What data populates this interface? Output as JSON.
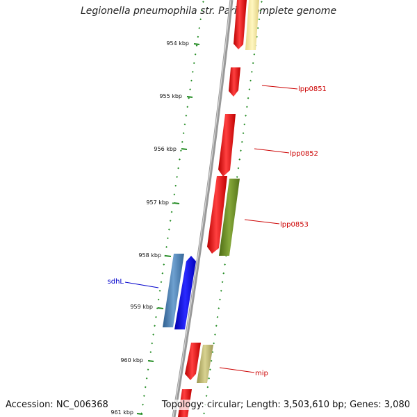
{
  "title": "Legionella pneumophila str. Paris, complete genome",
  "accession": "Accession: NC_006368",
  "topology": "Topology: circular; Length: 3,503,610 bp; Genes: 3,080",
  "ticks": [
    "954 kbp",
    "955 kbp",
    "956 kbp",
    "957 kbp",
    "958 kbp",
    "959 kbp",
    "960 kbp",
    "961 kbp"
  ],
  "gene_labels": [
    {
      "name": "lpp0851",
      "color": "#cc0000"
    },
    {
      "name": "lpp0852",
      "color": "#cc0000"
    },
    {
      "name": "lpp0853",
      "color": "#cc0000"
    },
    {
      "name": "sdhL",
      "color": "#0000cc"
    },
    {
      "name": "mip",
      "color": "#cc0000"
    }
  ],
  "colors": {
    "backbone": "#8a8a8a",
    "tick": "#228b22",
    "gene_red": "#ee1111",
    "gene_yellow": "#f0e68c",
    "gene_olive": "#6b8e23",
    "gene_steelblue": "#4682b4",
    "gene_blue": "#0000ee",
    "gene_khaki": "#bdb76b"
  }
}
